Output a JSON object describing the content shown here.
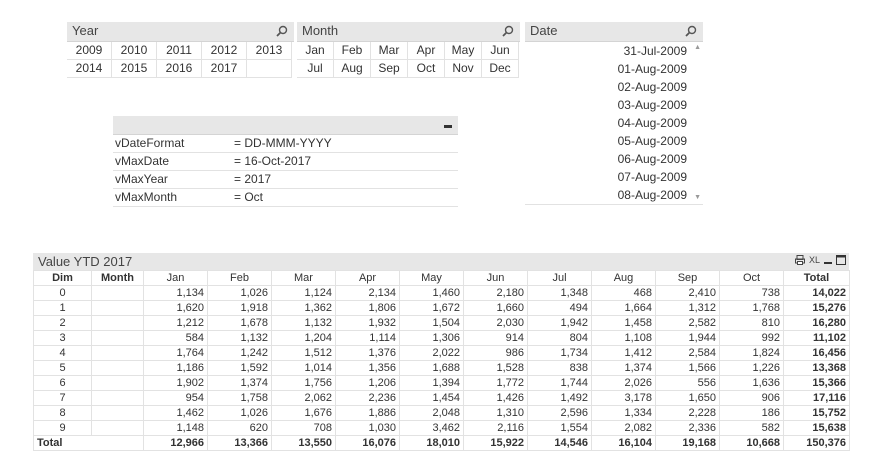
{
  "year_box": {
    "title": "Year",
    "items": [
      "2009",
      "2010",
      "2011",
      "2012",
      "2013",
      "2014",
      "2015",
      "2016",
      "2017",
      ""
    ]
  },
  "month_box": {
    "title": "Month",
    "items": [
      "Jan",
      "Feb",
      "Mar",
      "Apr",
      "May",
      "Jun",
      "Jul",
      "Aug",
      "Sep",
      "Oct",
      "Nov",
      "Dec"
    ]
  },
  "date_box": {
    "title": "Date",
    "items": [
      "31-Jul-2009",
      "01-Aug-2009",
      "02-Aug-2009",
      "03-Aug-2009",
      "04-Aug-2009",
      "05-Aug-2009",
      "06-Aug-2009",
      "07-Aug-2009",
      "08-Aug-2009"
    ]
  },
  "variables": {
    "rows": [
      {
        "name": "vDateFormat",
        "value": "= DD-MMM-YYYY"
      },
      {
        "name": "vMaxDate",
        "value": "= 16-Oct-2017"
      },
      {
        "name": "vMaxYear",
        "value": "= 2017"
      },
      {
        "name": "vMaxMonth",
        "value": "= Oct"
      }
    ]
  },
  "pivot": {
    "title": "Value YTD  2017",
    "icons": {
      "print": "print-icon",
      "xl": "XL"
    },
    "dim_header": "Dim",
    "month_header": "Month",
    "months": [
      "Jan",
      "Feb",
      "Mar",
      "Apr",
      "May",
      "Jun",
      "Jul",
      "Aug",
      "Sep",
      "Oct"
    ],
    "total_header": "Total",
    "rows": [
      {
        "dim": "0",
        "values": [
          "1,134",
          "1,026",
          "1,124",
          "2,134",
          "1,460",
          "2,180",
          "1,348",
          "468",
          "2,410",
          "738"
        ],
        "total": "14,022"
      },
      {
        "dim": "1",
        "values": [
          "1,620",
          "1,918",
          "1,362",
          "1,806",
          "1,672",
          "1,660",
          "494",
          "1,664",
          "1,312",
          "1,768"
        ],
        "total": "15,276"
      },
      {
        "dim": "2",
        "values": [
          "1,212",
          "1,678",
          "1,132",
          "1,932",
          "1,504",
          "2,030",
          "1,942",
          "1,458",
          "2,582",
          "810"
        ],
        "total": "16,280"
      },
      {
        "dim": "3",
        "values": [
          "584",
          "1,132",
          "1,204",
          "1,114",
          "1,306",
          "914",
          "804",
          "1,108",
          "1,944",
          "992"
        ],
        "total": "11,102"
      },
      {
        "dim": "4",
        "values": [
          "1,764",
          "1,242",
          "1,512",
          "1,376",
          "2,022",
          "986",
          "1,734",
          "1,412",
          "2,584",
          "1,824"
        ],
        "total": "16,456"
      },
      {
        "dim": "5",
        "values": [
          "1,186",
          "1,592",
          "1,014",
          "1,356",
          "1,688",
          "1,528",
          "838",
          "1,374",
          "1,566",
          "1,226"
        ],
        "total": "13,368"
      },
      {
        "dim": "6",
        "values": [
          "1,902",
          "1,374",
          "1,756",
          "1,206",
          "1,394",
          "1,772",
          "1,744",
          "2,026",
          "556",
          "1,636"
        ],
        "total": "15,366"
      },
      {
        "dim": "7",
        "values": [
          "954",
          "1,758",
          "2,062",
          "2,236",
          "1,454",
          "1,426",
          "1,492",
          "3,178",
          "1,650",
          "906"
        ],
        "total": "17,116"
      },
      {
        "dim": "8",
        "values": [
          "1,462",
          "1,026",
          "1,676",
          "1,886",
          "2,048",
          "1,310",
          "2,596",
          "1,334",
          "2,228",
          "186"
        ],
        "total": "15,752"
      },
      {
        "dim": "9",
        "values": [
          "1,148",
          "620",
          "708",
          "1,030",
          "3,462",
          "2,116",
          "1,554",
          "2,082",
          "2,336",
          "582"
        ],
        "total": "15,638"
      }
    ],
    "total_row": {
      "label": "Total",
      "values": [
        "12,966",
        "13,366",
        "13,550",
        "16,076",
        "18,010",
        "15,922",
        "14,546",
        "16,104",
        "19,168",
        "10,668"
      ],
      "total": "150,376"
    }
  }
}
